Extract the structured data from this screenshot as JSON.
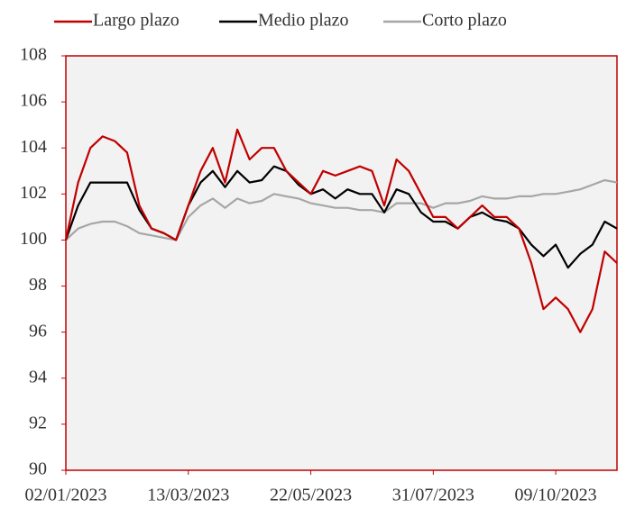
{
  "chart_data": {
    "type": "line",
    "x": [
      "02/01/2023",
      "09/01/2023",
      "16/01/2023",
      "23/01/2023",
      "30/01/2023",
      "06/02/2023",
      "13/02/2023",
      "20/02/2023",
      "27/02/2023",
      "06/03/2023",
      "13/03/2023",
      "20/03/2023",
      "27/03/2023",
      "03/04/2023",
      "10/04/2023",
      "17/04/2023",
      "24/04/2023",
      "01/05/2023",
      "08/05/2023",
      "15/05/2023",
      "22/05/2023",
      "29/05/2023",
      "05/06/2023",
      "12/06/2023",
      "19/06/2023",
      "26/06/2023",
      "03/07/2023",
      "10/07/2023",
      "17/07/2023",
      "24/07/2023",
      "31/07/2023",
      "07/08/2023",
      "14/08/2023",
      "21/08/2023",
      "28/08/2023",
      "04/09/2023",
      "11/09/2023",
      "18/09/2023",
      "25/09/2023",
      "02/10/2023",
      "09/10/2023",
      "16/10/2023",
      "23/10/2023",
      "30/10/2023",
      "06/11/2023",
      "13/11/2023"
    ],
    "series": [
      {
        "name": "Largo plazo",
        "color": "#c00000",
        "values": [
          100,
          102.5,
          104,
          104.5,
          104.3,
          103.8,
          101.5,
          100.5,
          100.3,
          100,
          101.5,
          103,
          104,
          102.5,
          104.8,
          103.5,
          104,
          104,
          103,
          102.5,
          102,
          103,
          102.8,
          103,
          103.2,
          103,
          101.5,
          103.5,
          103,
          102,
          101,
          101,
          100.5,
          101,
          101.5,
          101,
          101,
          100.5,
          99,
          97,
          97.5,
          97,
          96,
          97,
          99.5,
          99
        ]
      },
      {
        "name": "Medio plazo",
        "color": "#000000",
        "values": [
          100,
          101.5,
          102.5,
          102.5,
          102.5,
          102.5,
          101.3,
          100.5,
          100.3,
          100,
          101.5,
          102.5,
          103,
          102.3,
          103,
          102.5,
          102.6,
          103.2,
          103,
          102.4,
          102,
          102.2,
          101.8,
          102.2,
          102,
          102,
          101.2,
          102.2,
          102,
          101.2,
          100.8,
          100.8,
          100.5,
          101,
          101.2,
          100.9,
          100.8,
          100.5,
          99.8,
          99.3,
          99.8,
          98.8,
          99.4,
          99.8,
          100.8,
          100.5
        ]
      },
      {
        "name": "Corto plazo",
        "color": "#a6a6a6",
        "values": [
          100,
          100.5,
          100.7,
          100.8,
          100.8,
          100.6,
          100.3,
          100.2,
          100.1,
          100,
          101,
          101.5,
          101.8,
          101.4,
          101.8,
          101.6,
          101.7,
          102,
          101.9,
          101.8,
          101.6,
          101.5,
          101.4,
          101.4,
          101.3,
          101.3,
          101.2,
          101.6,
          101.6,
          101.6,
          101.4,
          101.6,
          101.6,
          101.7,
          101.9,
          101.8,
          101.8,
          101.9,
          101.9,
          102,
          102,
          102.1,
          102.2,
          102.4,
          102.6,
          102.5
        ]
      }
    ],
    "xlim": [
      "02/01/2023",
      "13/11/2023"
    ],
    "xticks": [
      "02/01/2023",
      "13/03/2023",
      "22/05/2023",
      "31/07/2023",
      "09/10/2023"
    ],
    "ylim": [
      90,
      108
    ],
    "yticks": [
      90,
      92,
      94,
      96,
      98,
      100,
      102,
      104,
      106,
      108
    ],
    "legend": "top"
  }
}
